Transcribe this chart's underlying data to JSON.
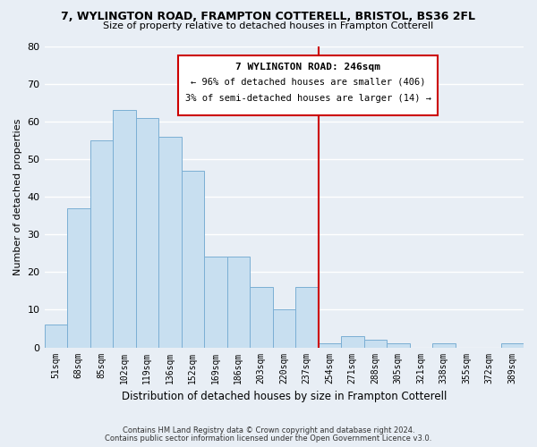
{
  "title": "7, WYLINGTON ROAD, FRAMPTON COTTERELL, BRISTOL, BS36 2FL",
  "subtitle": "Size of property relative to detached houses in Frampton Cotterell",
  "xlabel": "Distribution of detached houses by size in Frampton Cotterell",
  "ylabel": "Number of detached properties",
  "bin_labels": [
    "51sqm",
    "68sqm",
    "85sqm",
    "102sqm",
    "119sqm",
    "136sqm",
    "152sqm",
    "169sqm",
    "186sqm",
    "203sqm",
    "220sqm",
    "237sqm",
    "254sqm",
    "271sqm",
    "288sqm",
    "305sqm",
    "321sqm",
    "338sqm",
    "355sqm",
    "372sqm",
    "389sqm"
  ],
  "bar_values": [
    6,
    37,
    55,
    63,
    61,
    56,
    47,
    24,
    24,
    16,
    10,
    16,
    1,
    3,
    2,
    1,
    0,
    1,
    0,
    0,
    1
  ],
  "bar_color": "#c8dff0",
  "bar_edgecolor": "#7bafd4",
  "vline_color": "#cc0000",
  "ylim": [
    0,
    80
  ],
  "yticks": [
    0,
    10,
    20,
    30,
    40,
    50,
    60,
    70,
    80
  ],
  "annotation_title": "7 WYLINGTON ROAD: 246sqm",
  "annotation_line1": "← 96% of detached houses are smaller (406)",
  "annotation_line2": "3% of semi-detached houses are larger (14) →",
  "annotation_box_color": "#ffffff",
  "annotation_box_edgecolor": "#cc0000",
  "footnote1": "Contains HM Land Registry data © Crown copyright and database right 2024.",
  "footnote2": "Contains public sector information licensed under the Open Government Licence v3.0.",
  "background_color": "#e8eef5",
  "grid_color": "#ffffff"
}
